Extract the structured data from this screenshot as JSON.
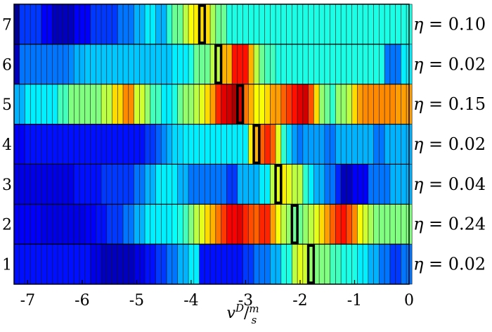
{
  "chart_data": {
    "type": "heatmap",
    "xlabel": "v^D / m/s",
    "x_range": [
      -7.25,
      0.0
    ],
    "x_ticks": [
      -7,
      -6,
      -5,
      -4,
      -3,
      -2,
      -1,
      0
    ],
    "x_tick_labels": [
      "-7",
      "-6",
      "-5",
      "-4",
      "-3",
      "-2",
      "-1",
      "0"
    ],
    "cell_width": 0.1,
    "colormap": "jet",
    "value_range": [
      0.0,
      1.0
    ],
    "rows": [
      {
        "label": "7",
        "eta_label": "η = 0.10",
        "highlight_x": -3.8,
        "values": [
          0.02,
          0.18,
          0.18,
          0.18,
          0.18,
          0.12,
          0.12,
          0.06,
          0.06,
          0.06,
          0.06,
          0.12,
          0.12,
          0.12,
          0.18,
          0.18,
          0.18,
          0.18,
          0.18,
          0.24,
          0.24,
          0.24,
          0.3,
          0.3,
          0.36,
          0.36,
          0.3,
          0.3,
          0.42,
          0.48,
          0.48,
          0.56,
          0.62,
          0.64,
          0.66,
          0.66,
          0.54,
          0.48,
          0.48,
          0.4,
          0.4,
          0.4,
          0.4,
          0.4,
          0.4,
          0.4,
          0.4,
          0.4,
          0.4,
          0.4,
          0.4,
          0.4,
          0.4,
          0.4,
          0.4,
          0.4,
          0.4,
          0.4,
          0.4,
          0.4,
          0.4,
          0.4,
          0.4,
          0.4,
          0.4,
          0.4,
          0.4,
          0.4,
          0.4,
          0.4,
          0.4,
          0.4,
          0.4
        ]
      },
      {
        "label": "6",
        "eta_label": "η = 0.02",
        "highlight_x": -3.5,
        "values": [
          0.06,
          0.24,
          0.24,
          0.24,
          0.24,
          0.24,
          0.24,
          0.24,
          0.24,
          0.24,
          0.26,
          0.3,
          0.3,
          0.32,
          0.32,
          0.32,
          0.32,
          0.32,
          0.32,
          0.32,
          0.32,
          0.32,
          0.32,
          0.32,
          0.32,
          0.32,
          0.32,
          0.32,
          0.32,
          0.36,
          0.36,
          0.36,
          0.4,
          0.48,
          0.48,
          0.48,
          0.56,
          0.56,
          0.7,
          0.7,
          0.86,
          0.86,
          0.86,
          0.7,
          0.56,
          0.48,
          0.44,
          0.44,
          0.4,
          0.4,
          0.4,
          0.4,
          0.4,
          0.4,
          0.4,
          0.4,
          0.4,
          0.4,
          0.4,
          0.4,
          0.4,
          0.4,
          0.4,
          0.4,
          0.4,
          0.4,
          0.4,
          0.4,
          0.24,
          0.24,
          0.24,
          0.36,
          0.36
        ]
      },
      {
        "label": "5",
        "eta_label": "η = 0.15",
        "highlight_x": -3.1,
        "values": [
          0.3,
          0.3,
          0.36,
          0.36,
          0.36,
          0.36,
          0.36,
          0.36,
          0.44,
          0.44,
          0.5,
          0.5,
          0.5,
          0.5,
          0.5,
          0.5,
          0.56,
          0.56,
          0.66,
          0.66,
          0.74,
          0.74,
          0.58,
          0.58,
          0.52,
          0.44,
          0.44,
          0.36,
          0.36,
          0.4,
          0.48,
          0.52,
          0.52,
          0.56,
          0.6,
          0.66,
          0.72,
          0.84,
          0.9,
          0.92,
          0.96,
          0.92,
          0.76,
          0.7,
          0.62,
          0.62,
          0.66,
          0.72,
          0.72,
          0.78,
          0.82,
          0.86,
          0.9,
          0.92,
          0.8,
          0.66,
          0.52,
          0.48,
          0.42,
          0.52,
          0.52,
          0.56,
          0.66,
          0.72,
          0.74,
          0.74,
          0.74,
          0.74,
          0.74,
          0.74,
          0.72,
          0.72,
          0.72
        ]
      },
      {
        "label": "4",
        "eta_label": "η = 0.02",
        "highlight_x": -2.8,
        "values": [
          0.12,
          0.12,
          0.14,
          0.14,
          0.14,
          0.14,
          0.14,
          0.14,
          0.14,
          0.14,
          0.14,
          0.14,
          0.14,
          0.14,
          0.14,
          0.14,
          0.14,
          0.14,
          0.14,
          0.14,
          0.14,
          0.14,
          0.14,
          0.14,
          0.18,
          0.18,
          0.22,
          0.26,
          0.3,
          0.34,
          0.34,
          0.36,
          0.36,
          0.36,
          0.36,
          0.36,
          0.36,
          0.36,
          0.36,
          0.36,
          0.36,
          0.36,
          0.36,
          0.64,
          0.7,
          0.78,
          0.84,
          0.78,
          0.6,
          0.42,
          0.34,
          0.28,
          0.24,
          0.28,
          0.28,
          0.28,
          0.28,
          0.24,
          0.24,
          0.3,
          0.3,
          0.3,
          0.3,
          0.3,
          0.3,
          0.3,
          0.24,
          0.24,
          0.3,
          0.3,
          0.3,
          0.3,
          0.3
        ]
      },
      {
        "label": "3",
        "eta_label": "η = 0.04",
        "highlight_x": -2.4,
        "values": [
          0.1,
          0.1,
          0.1,
          0.1,
          0.1,
          0.1,
          0.1,
          0.1,
          0.1,
          0.1,
          0.1,
          0.14,
          0.14,
          0.14,
          0.14,
          0.14,
          0.18,
          0.18,
          0.18,
          0.18,
          0.18,
          0.18,
          0.24,
          0.24,
          0.3,
          0.3,
          0.36,
          0.36,
          0.36,
          0.36,
          0.3,
          0.3,
          0.24,
          0.24,
          0.24,
          0.24,
          0.24,
          0.24,
          0.24,
          0.18,
          0.18,
          0.3,
          0.3,
          0.3,
          0.3,
          0.36,
          0.36,
          0.56,
          0.6,
          0.64,
          0.6,
          0.56,
          0.56,
          0.42,
          0.36,
          0.3,
          0.3,
          0.24,
          0.24,
          0.16,
          0.06,
          0.06,
          0.12,
          0.12,
          0.12,
          0.24,
          0.24,
          0.24,
          0.24,
          0.3,
          0.3,
          0.3,
          0.3
        ]
      },
      {
        "label": "2",
        "eta_label": "η = 0.24",
        "highlight_x": -2.1,
        "values": [
          0.12,
          0.12,
          0.12,
          0.12,
          0.12,
          0.1,
          0.1,
          0.1,
          0.1,
          0.1,
          0.1,
          0.1,
          0.1,
          0.12,
          0.12,
          0.14,
          0.14,
          0.18,
          0.18,
          0.18,
          0.24,
          0.24,
          0.3,
          0.3,
          0.36,
          0.36,
          0.36,
          0.36,
          0.36,
          0.38,
          0.4,
          0.44,
          0.5,
          0.56,
          0.6,
          0.66,
          0.7,
          0.76,
          0.82,
          0.88,
          0.88,
          0.9,
          0.84,
          0.8,
          0.78,
          0.84,
          0.84,
          0.72,
          0.62,
          0.56,
          0.52,
          0.48,
          0.48,
          0.52,
          0.56,
          0.6,
          0.66,
          0.72,
          0.78,
          0.84,
          0.86,
          0.8,
          0.74,
          0.62,
          0.58,
          0.54,
          0.5,
          0.5,
          0.5,
          0.5,
          0.5,
          0.5,
          0.5
        ]
      },
      {
        "label": "1",
        "eta_label": "η = 0.02",
        "highlight_x": -1.8,
        "values": [
          0.14,
          0.14,
          0.14,
          0.14,
          0.14,
          0.14,
          0.14,
          0.14,
          0.14,
          0.14,
          0.14,
          0.14,
          0.14,
          0.14,
          0.1,
          0.1,
          0.06,
          0.06,
          0.06,
          0.06,
          0.06,
          0.06,
          0.1,
          0.1,
          0.14,
          0.14,
          0.18,
          0.18,
          0.24,
          0.24,
          0.3,
          0.3,
          0.36,
          0.36,
          0.14,
          0.14,
          0.14,
          0.14,
          0.14,
          0.14,
          0.14,
          0.14,
          0.18,
          0.18,
          0.24,
          0.24,
          0.24,
          0.3,
          0.3,
          0.4,
          0.4,
          0.56,
          0.6,
          0.58,
          0.52,
          0.5,
          0.5,
          0.5,
          0.44,
          0.44,
          0.4,
          0.4,
          0.4,
          0.36,
          0.36,
          0.3,
          0.3,
          0.24,
          0.24,
          0.18,
          0.18,
          0.24,
          0.24
        ]
      }
    ]
  }
}
